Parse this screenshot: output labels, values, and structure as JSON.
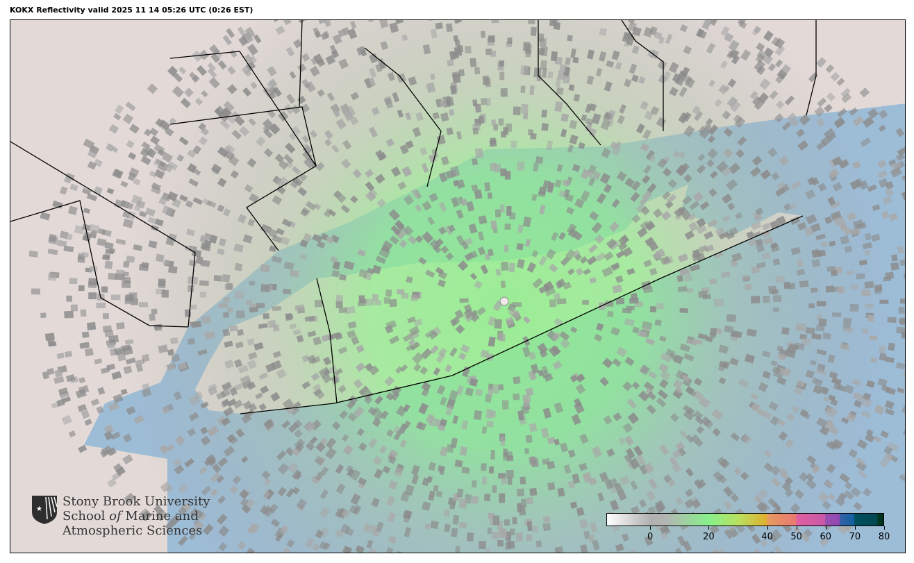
{
  "title": "KOKX Reflectivity valid 2025 11 14 05:26 UTC (0:26 EST)",
  "map": {
    "radar_site": "KOKX",
    "product": "Reflectivity",
    "colors": {
      "ocean": "#9dbcd6",
      "land": "#e3dad7",
      "echo_green": "#8ef08a",
      "echo_gray": "#8c8c8c",
      "boundary": "#000000"
    }
  },
  "colorbar": {
    "range": [
      -15,
      80
    ],
    "ticks": [
      0,
      20,
      40,
      50,
      60,
      70,
      80
    ],
    "stops": [
      {
        "v": -15,
        "c": "#ffffff"
      },
      {
        "v": 0,
        "c": "#b0b0b0"
      },
      {
        "v": 5,
        "c": "#b4b4b4"
      },
      {
        "v": 20,
        "c": "#88f08c"
      },
      {
        "v": 30,
        "c": "#b8e060"
      },
      {
        "v": 40,
        "c": "#e0b030"
      },
      {
        "v": 40.01,
        "c": "#e89a60"
      },
      {
        "v": 50,
        "c": "#e87a70"
      },
      {
        "v": 50.01,
        "c": "#e060a0"
      },
      {
        "v": 60,
        "c": "#c858a8"
      },
      {
        "v": 60.01,
        "c": "#9850b0"
      },
      {
        "v": 65,
        "c": "#9048b0"
      },
      {
        "v": 65.01,
        "c": "#3860a8"
      },
      {
        "v": 70,
        "c": "#1060a0"
      },
      {
        "v": 70.01,
        "c": "#005060"
      },
      {
        "v": 78,
        "c": "#004850"
      },
      {
        "v": 78.01,
        "c": "#003820"
      },
      {
        "v": 80,
        "c": "#003020"
      }
    ]
  },
  "logo": {
    "line1": "Stony Brook University",
    "line2a": "School ",
    "line2b": "of",
    "line2c": " Marine and",
    "line3": "Atmospheric Sciences"
  }
}
